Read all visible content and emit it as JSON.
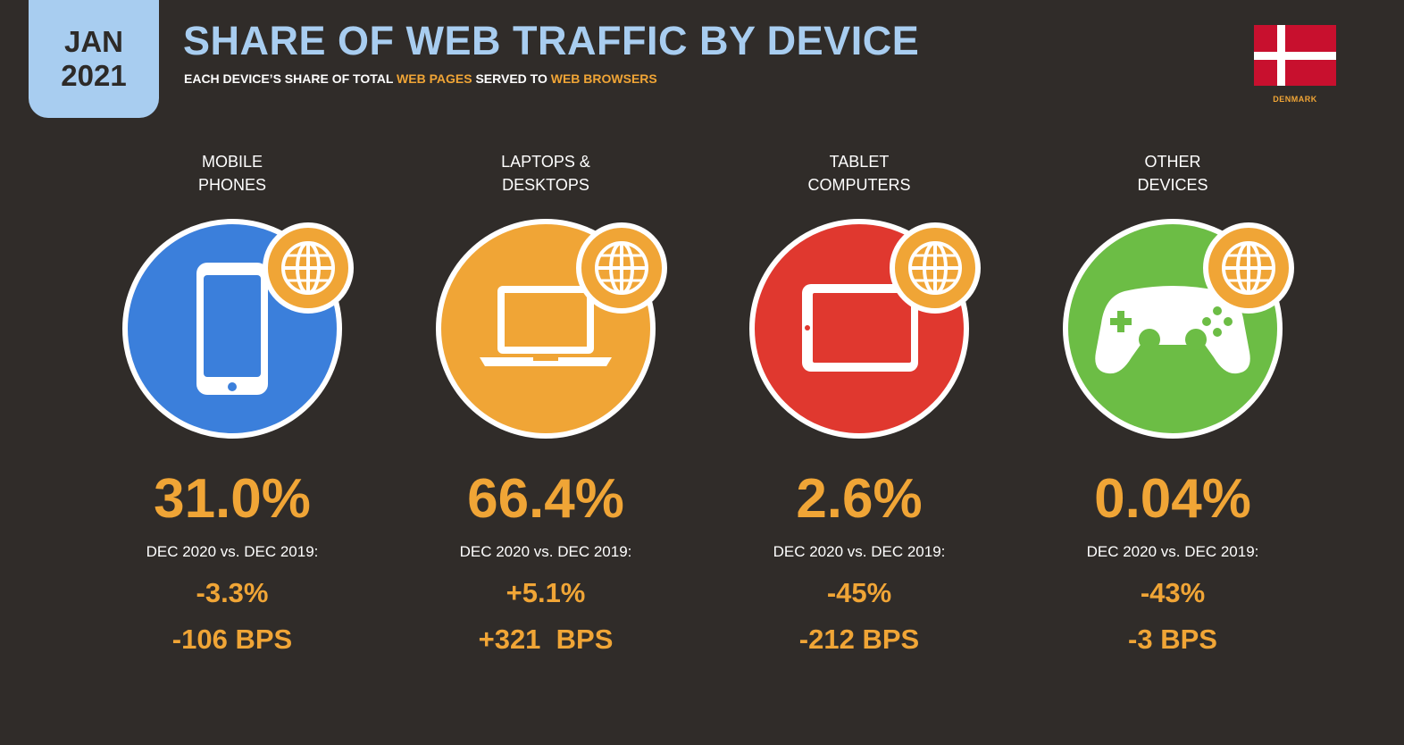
{
  "header": {
    "date_month": "JAN",
    "date_year": "2021",
    "title": "SHARE OF WEB TRAFFIC BY DEVICE",
    "subtitle_parts": [
      "EACH DEVICE’S SHARE OF TOTAL ",
      "WEB PAGES",
      " SERVED TO ",
      "WEB BROWSERS"
    ]
  },
  "country": {
    "name": "DENMARK",
    "flag_colors": {
      "red": "#c8102e",
      "white": "#ffffff"
    }
  },
  "colors": {
    "accent": "#f0a536",
    "title_blue": "#a8cdf0",
    "background": "#302c29",
    "mobile": "#3b7fdb",
    "laptop": "#f0a536",
    "tablet": "#e0382f",
    "other": "#6cbd45"
  },
  "devices": [
    {
      "label": "MOBILE\nPHONES",
      "icon": "mobile-phone-icon",
      "share": "31.0%",
      "compare_label": "DEC 2020 vs. DEC 2019:",
      "change_pct": "-3.3%",
      "change_bps": "-106 BPS"
    },
    {
      "label": "LAPTOPS &\nDESKTOPS",
      "icon": "laptop-icon",
      "share": "66.4%",
      "compare_label": "DEC 2020 vs. DEC 2019:",
      "change_pct": "+5.1%",
      "change_bps": "+321  BPS"
    },
    {
      "label": "TABLET\nCOMPUTERS",
      "icon": "tablet-icon",
      "share": "2.6%",
      "compare_label": "DEC 2020 vs. DEC 2019:",
      "change_pct": "-45%",
      "change_bps": "-212 BPS"
    },
    {
      "label": "OTHER\nDEVICES",
      "icon": "game-controller-icon",
      "share": "0.04%",
      "compare_label": "DEC 2020 vs. DEC 2019:",
      "change_pct": "-43%",
      "change_bps": "-3 BPS"
    }
  ]
}
